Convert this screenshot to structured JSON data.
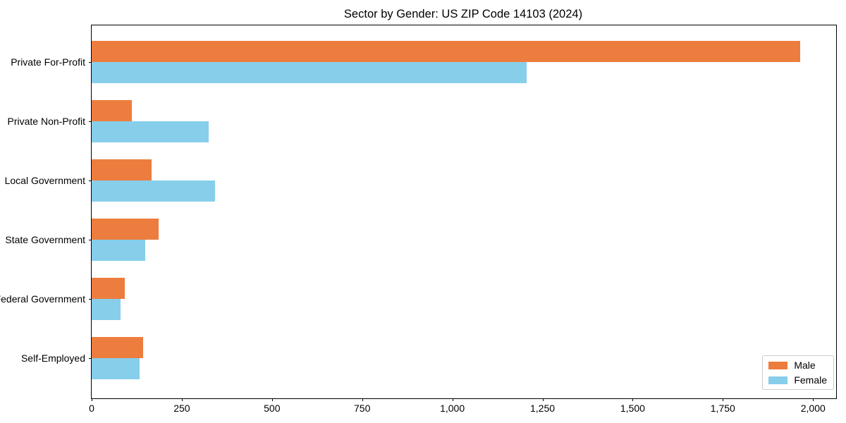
{
  "chart_data": {
    "type": "bar",
    "orientation": "horizontal",
    "title": "Sector by Gender: US ZIP Code 14103 (2024)",
    "categories": [
      "Private For-Profit",
      "Private Non-Profit",
      "Local Government",
      "State Government",
      "Federal Government",
      "Self-Employed"
    ],
    "series": [
      {
        "name": "Male",
        "color": "#ED7D3E",
        "values": [
          1965,
          112,
          167,
          185,
          91,
          142
        ]
      },
      {
        "name": "Female",
        "color": "#87CEEB",
        "values": [
          1205,
          324,
          342,
          148,
          81,
          132
        ]
      }
    ],
    "xlabel": "",
    "ylabel": "",
    "xlim": [
      0,
      2064
    ],
    "x_ticks": [
      {
        "value": 0,
        "label": "0"
      },
      {
        "value": 250,
        "label": "250"
      },
      {
        "value": 500,
        "label": "500"
      },
      {
        "value": 750,
        "label": "750"
      },
      {
        "value": 1000,
        "label": "1,000"
      },
      {
        "value": 1250,
        "label": "1,250"
      },
      {
        "value": 1500,
        "label": "1,500"
      },
      {
        "value": 1750,
        "label": "1,750"
      },
      {
        "value": 2000,
        "label": "2,000"
      }
    ],
    "grid": false,
    "legend_position": "lower right"
  }
}
